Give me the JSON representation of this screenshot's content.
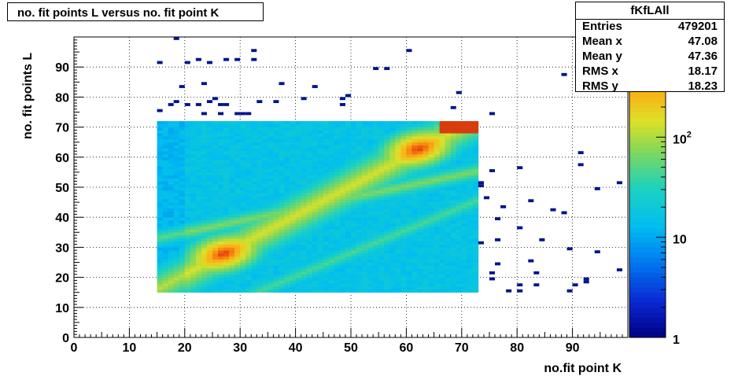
{
  "title": "no. fit points L versus no. fit point K",
  "stats": {
    "name": "fKfLAll",
    "rows": [
      {
        "label": "Entries",
        "value": "479201"
      },
      {
        "label": "Mean x",
        "value": "47.08"
      },
      {
        "label": "Mean y",
        "value": "47.36"
      },
      {
        "label": "RMS x",
        "value": "18.17"
      },
      {
        "label": "RMS y",
        "value": "18.23"
      }
    ]
  },
  "chart_data": {
    "type": "heatmap",
    "title": "no. fit points L versus no. fit point K",
    "xlabel": "no.fit point K",
    "ylabel": "no. fit points  L",
    "xlim": [
      0,
      100
    ],
    "ylim": [
      0,
      100
    ],
    "x_ticks": [
      0,
      10,
      20,
      30,
      40,
      50,
      60,
      70,
      80,
      90
    ],
    "y_ticks": [
      0,
      10,
      20,
      30,
      40,
      50,
      60,
      70,
      80,
      90
    ],
    "grid": true,
    "z_scale": "log",
    "z_range": [
      1,
      1000
    ],
    "z_ticks": [
      {
        "value": 1,
        "label": "1"
      },
      {
        "value": 10,
        "label": "10"
      },
      {
        "value": 100,
        "label": "10",
        "exponent": "2"
      }
    ],
    "main_region": {
      "x": [
        15,
        73
      ],
      "y": [
        15,
        72
      ]
    },
    "ridges": [
      {
        "from": [
          15,
          16
        ],
        "to": [
          72,
          72
        ],
        "peak_points": [
          [
            27,
            28
          ],
          [
            62,
            63
          ]
        ]
      },
      {
        "from": [
          15,
          33
        ],
        "to": [
          72,
          55
        ]
      },
      {
        "from": [
          33,
          15
        ],
        "to": [
          72,
          45
        ]
      }
    ],
    "outliers": [
      [
        18,
        99
      ],
      [
        15,
        91
      ],
      [
        20,
        91
      ],
      [
        22,
        92
      ],
      [
        24,
        91
      ],
      [
        27,
        92
      ],
      [
        29,
        92
      ],
      [
        32,
        95
      ],
      [
        32,
        92
      ],
      [
        60,
        95
      ],
      [
        23,
        84
      ],
      [
        19,
        83
      ],
      [
        37,
        84
      ],
      [
        43,
        83
      ],
      [
        54,
        89
      ],
      [
        56,
        89
      ],
      [
        88,
        87
      ],
      [
        17,
        77
      ],
      [
        18,
        78
      ],
      [
        20,
        77
      ],
      [
        22,
        77
      ],
      [
        24,
        78
      ],
      [
        25,
        79
      ],
      [
        26,
        77
      ],
      [
        27,
        77
      ],
      [
        33,
        78
      ],
      [
        36,
        78
      ],
      [
        41,
        79
      ],
      [
        48,
        79
      ],
      [
        49,
        80
      ],
      [
        48,
        77
      ],
      [
        69,
        81
      ],
      [
        68,
        76
      ],
      [
        15,
        75
      ],
      [
        23,
        74
      ],
      [
        26,
        74
      ],
      [
        29,
        74
      ],
      [
        30,
        74
      ],
      [
        31,
        74
      ],
      [
        75,
        74
      ],
      [
        91,
        61
      ],
      [
        91,
        57
      ],
      [
        75,
        55
      ],
      [
        80,
        56
      ],
      [
        73,
        51
      ],
      [
        73,
        50
      ],
      [
        94,
        49
      ],
      [
        98,
        51
      ],
      [
        74,
        46
      ],
      [
        77,
        43
      ],
      [
        82,
        45
      ],
      [
        86,
        42
      ],
      [
        88,
        41
      ],
      [
        76,
        39
      ],
      [
        80,
        36
      ],
      [
        84,
        32
      ],
      [
        73,
        31
      ],
      [
        76,
        32
      ],
      [
        89,
        29
      ],
      [
        94,
        28
      ],
      [
        76,
        24
      ],
      [
        82,
        25
      ],
      [
        98,
        22
      ],
      [
        75,
        21
      ],
      [
        83,
        21
      ],
      [
        75,
        19
      ],
      [
        92,
        19
      ],
      [
        92,
        18
      ],
      [
        90,
        17
      ],
      [
        78,
        15
      ],
      [
        80,
        15
      ],
      [
        80,
        17
      ],
      [
        83,
        17
      ],
      [
        89,
        15
      ]
    ]
  }
}
